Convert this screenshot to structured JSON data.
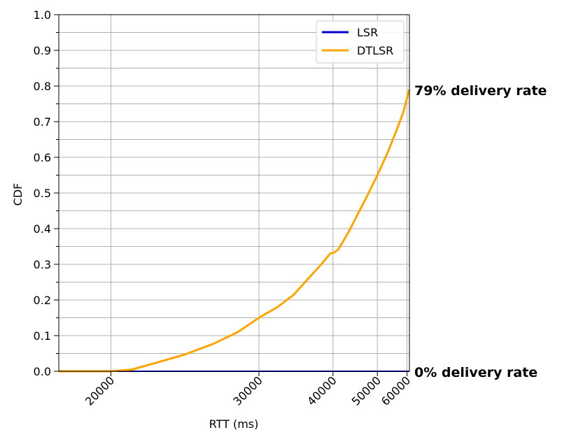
{
  "chart_data": {
    "type": "line",
    "xlabel": "RTT (ms)",
    "ylabel": "CDF",
    "x_scale": "reciprocal",
    "xlim": [
      17900,
      61000
    ],
    "ylim": [
      0.0,
      1.0
    ],
    "x_ticks": [
      20000,
      30000,
      40000,
      50000,
      60000
    ],
    "x_tick_labels": [
      "20000",
      "30000",
      "40000",
      "50000",
      "60000"
    ],
    "y_ticks": [
      0.0,
      0.1,
      0.2,
      0.3,
      0.4,
      0.5,
      0.6,
      0.7,
      0.8,
      0.9,
      1.0
    ],
    "y_tick_labels": [
      "0.0",
      "0.1",
      "0.2",
      "0.3",
      "0.4",
      "0.5",
      "0.6",
      "0.7",
      "0.8",
      "0.9",
      "1.0"
    ],
    "y_minor_ticks": [
      0.05,
      0.15,
      0.25,
      0.35,
      0.45,
      0.55,
      0.65,
      0.75,
      0.85,
      0.95
    ],
    "grid": true,
    "legend_position": "top-right",
    "series": [
      {
        "name": "LSR",
        "color": "#0000cc",
        "x": [
          17900,
          61000
        ],
        "y": [
          0.0,
          0.0
        ]
      },
      {
        "name": "DTLSR",
        "color": "#ffa500",
        "x": [
          17900,
          20000,
          21000,
          22000,
          24000,
          26000,
          28000,
          30000,
          32000,
          34000,
          36000,
          38000,
          39500,
          40200,
          41000,
          43000,
          45000,
          47000,
          50000,
          53000,
          56000,
          58500,
          60000,
          60500,
          61000
        ],
        "y": [
          0.0,
          0.0,
          0.005,
          0.02,
          0.047,
          0.077,
          0.11,
          0.15,
          0.18,
          0.215,
          0.26,
          0.3,
          0.33,
          0.333,
          0.342,
          0.39,
          0.44,
          0.485,
          0.55,
          0.612,
          0.675,
          0.725,
          0.765,
          0.78,
          0.79
        ]
      }
    ],
    "annotations": [
      {
        "text": "79% delivery rate",
        "y": 0.79
      },
      {
        "text": "0% delivery rate",
        "y": 0.0
      }
    ]
  }
}
